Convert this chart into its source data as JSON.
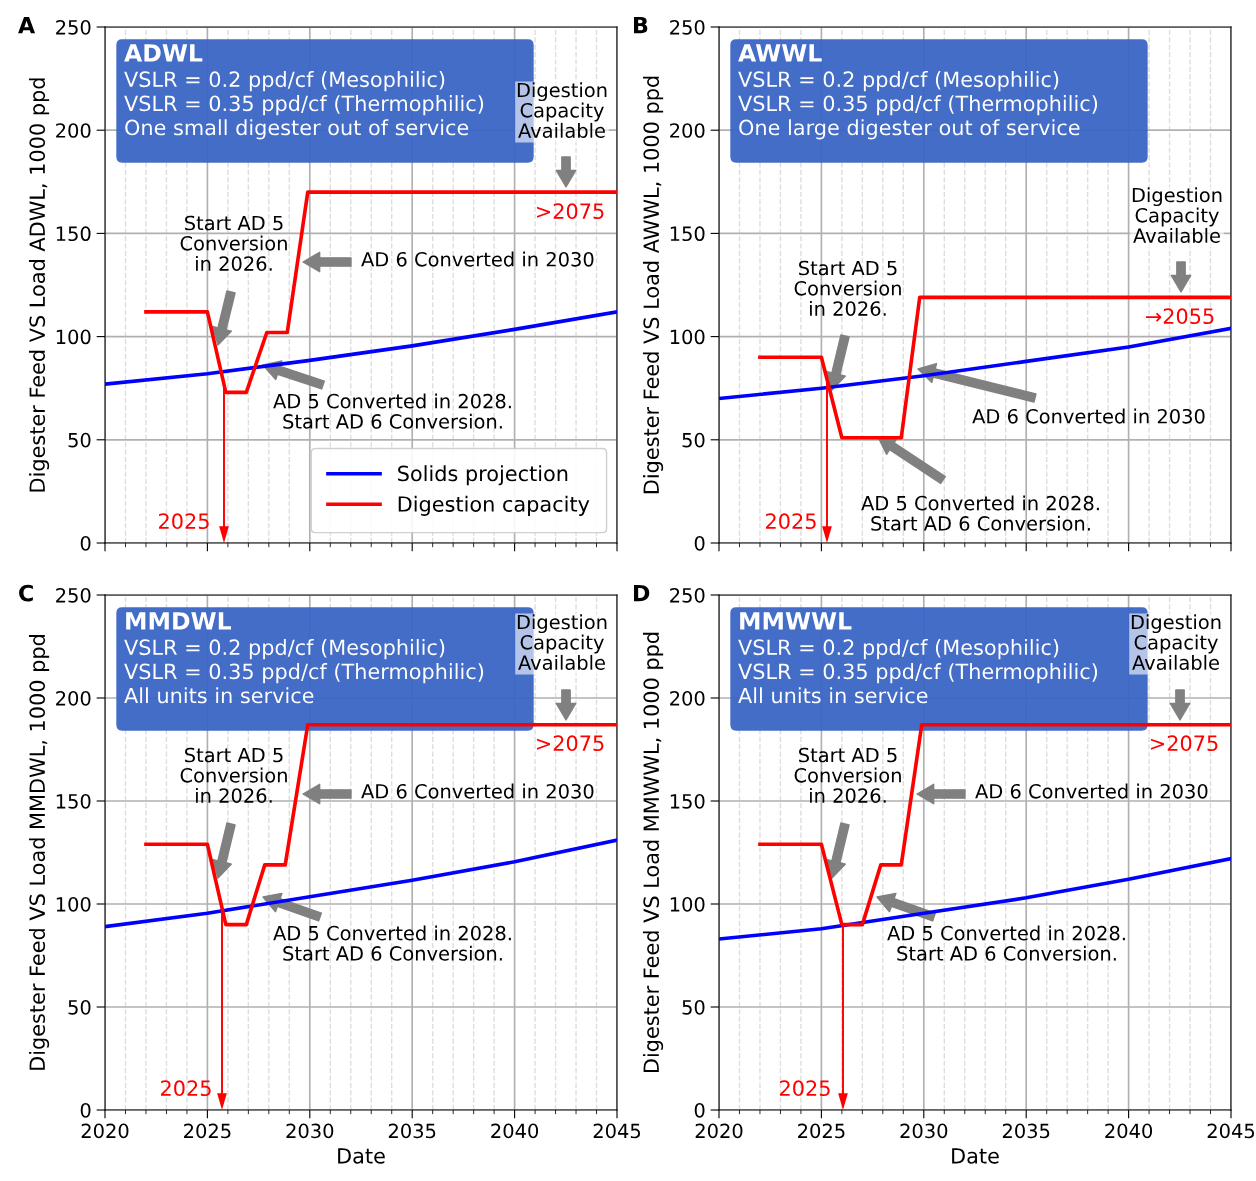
{
  "chart_data": [
    {
      "type": "line",
      "title": "ADWL",
      "subtitle": "VSLR = 0.2 ppd/cf (Mesophilic)\nVSLR = 0.35 ppd/cf (Thermophilic)\nOne small digester out of service",
      "ylabel": "Digester Feed VS Load ADWL, 1000 ppd",
      "series": [
        {
          "name": "Solids projection",
          "color": "#0000ff",
          "x": [
            2020,
            2025,
            2030,
            2035,
            2040,
            2045
          ],
          "values": [
            77,
            82,
            88.5,
            95.5,
            103.5,
            112
          ]
        },
        {
          "name": "Digestion capacity",
          "color": "#ff0000",
          "x": [
            2022,
            2025,
            2025.9,
            2026.9,
            2027.9,
            2028.9,
            2029.9,
            2045
          ],
          "values": [
            112,
            112,
            73,
            73,
            102,
            102,
            170,
            170
          ]
        }
      ],
      "annotations": [
        "A",
        "Start AD 5\nConversion\nin 2026.",
        "AD 6 Converted in 2030",
        "AD 5 Converted in 2028.\nStart AD 6 Conversion.",
        "Digestion\nCapacity\nAvailable",
        ">2075",
        "2025"
      ],
      "xlim": [
        2020,
        2045
      ],
      "xticks": [
        2020,
        2025,
        2030,
        2035,
        2040,
        2045
      ],
      "ylim": [
        0,
        250
      ],
      "yticks": [
        0,
        50,
        100,
        150,
        200,
        250
      ],
      "tick_labels": "y",
      "grid": true,
      "legend": "bottom right",
      "line_style": "solid",
      "marker": "none"
    },
    {
      "type": "line",
      "title": "AWWL",
      "subtitle": "VSLR = 0.2 ppd/cf (Mesophilic)\nVSLR = 0.35 ppd/cf (Thermophilic)\nOne large digester out of service",
      "ylabel": "Digester Feed VS Load AWWL, 1000 ppd",
      "series": [
        {
          "color": "#0000ff",
          "x": [
            2020,
            2025,
            2030,
            2035,
            2040,
            2045
          ],
          "values": [
            70,
            75,
            81,
            88,
            95,
            104
          ]
        },
        {
          "color": "#ff0000",
          "x": [
            2022,
            2025,
            2026,
            2028.9,
            2029.8,
            2045
          ],
          "values": [
            90,
            90,
            51,
            51,
            119,
            119
          ]
        }
      ],
      "annotations": [
        "B",
        "Start AD 5\nConversion\nin 2026.",
        "AD 6 Converted in 2030",
        "AD 5 Converted in 2028.\nStart AD 6 Conversion.",
        "Digestion\nCapacity\nAvailable",
        "→2055",
        "2025"
      ],
      "xlim": [
        2020,
        2045
      ],
      "xticks": [
        2020,
        2025,
        2030,
        2035,
        2040,
        2045
      ],
      "ylim": [
        0,
        250
      ],
      "yticks": [
        0,
        50,
        100,
        150,
        200,
        250
      ],
      "tick_labels": "y",
      "grid": true,
      "line_style": "solid",
      "marker": "none"
    },
    {
      "type": "line",
      "title": "MMDWL",
      "subtitle": "VSLR = 0.2 ppd/cf (Mesophilic)\nVSLR = 0.35 ppd/cf (Thermophilic)\nAll units in service",
      "xlabel": "Date",
      "ylabel": "Digester Feed VS Load MMDWL, 1000 ppd",
      "series": [
        {
          "color": "#0000ff",
          "x": [
            2020,
            2025,
            2030,
            2035,
            2040,
            2045
          ],
          "values": [
            89,
            95.5,
            103.5,
            111.5,
            120.5,
            131
          ]
        },
        {
          "color": "#ff0000",
          "x": [
            2022,
            2025,
            2025.9,
            2026.9,
            2027.8,
            2028.8,
            2029.9,
            2045
          ],
          "values": [
            129,
            129,
            90,
            90,
            119,
            119,
            187,
            187
          ]
        }
      ],
      "annotations": [
        "C",
        "Start AD 5\nConversion\nin 2026.",
        "AD 6 Converted in 2030",
        "AD 5 Converted in 2028.\nStart AD 6 Conversion.",
        "Digestion\nCapacity\nAvailable",
        ">2075",
        "2025"
      ],
      "xlim": [
        2020,
        2045
      ],
      "xticks": [
        2020,
        2025,
        2030,
        2035,
        2040,
        2045
      ],
      "ylim": [
        0,
        250
      ],
      "yticks": [
        0,
        50,
        100,
        150,
        200,
        250
      ],
      "grid": true,
      "line_style": "solid",
      "marker": "none"
    },
    {
      "type": "line",
      "title": "MMWWL",
      "subtitle": "VSLR = 0.2 ppd/cf (Mesophilic)\nVSLR = 0.35 ppd/cf (Thermophilic)\nAll units in service",
      "xlabel": "Date",
      "ylabel": "Digester Feed VS Load MMWWL, 1000 ppd",
      "series": [
        {
          "color": "#0000ff",
          "x": [
            2020,
            2025,
            2030,
            2035,
            2040,
            2045
          ],
          "values": [
            83,
            88,
            95.5,
            103,
            112,
            122
          ]
        },
        {
          "color": "#ff0000",
          "x": [
            2022,
            2025,
            2026,
            2027,
            2027.9,
            2028.9,
            2029.9,
            2045
          ],
          "values": [
            129,
            129,
            90,
            90,
            119,
            119,
            187,
            187
          ]
        }
      ],
      "annotations": [
        "D",
        "Start AD 5\nConversion\nin 2026.",
        "AD 6 Converted in 2030",
        "AD 5 Converted in 2028.\nStart AD 6 Conversion.",
        "Digestion\nCapacity\nAvailable",
        ">2075",
        "2025"
      ],
      "xlim": [
        2020,
        2045
      ],
      "xticks": [
        2020,
        2025,
        2030,
        2035,
        2040,
        2045
      ],
      "ylim": [
        0,
        250
      ],
      "yticks": [
        0,
        50,
        100,
        150,
        200,
        250
      ],
      "grid": true,
      "line_style": "solid",
      "marker": "none"
    }
  ]
}
